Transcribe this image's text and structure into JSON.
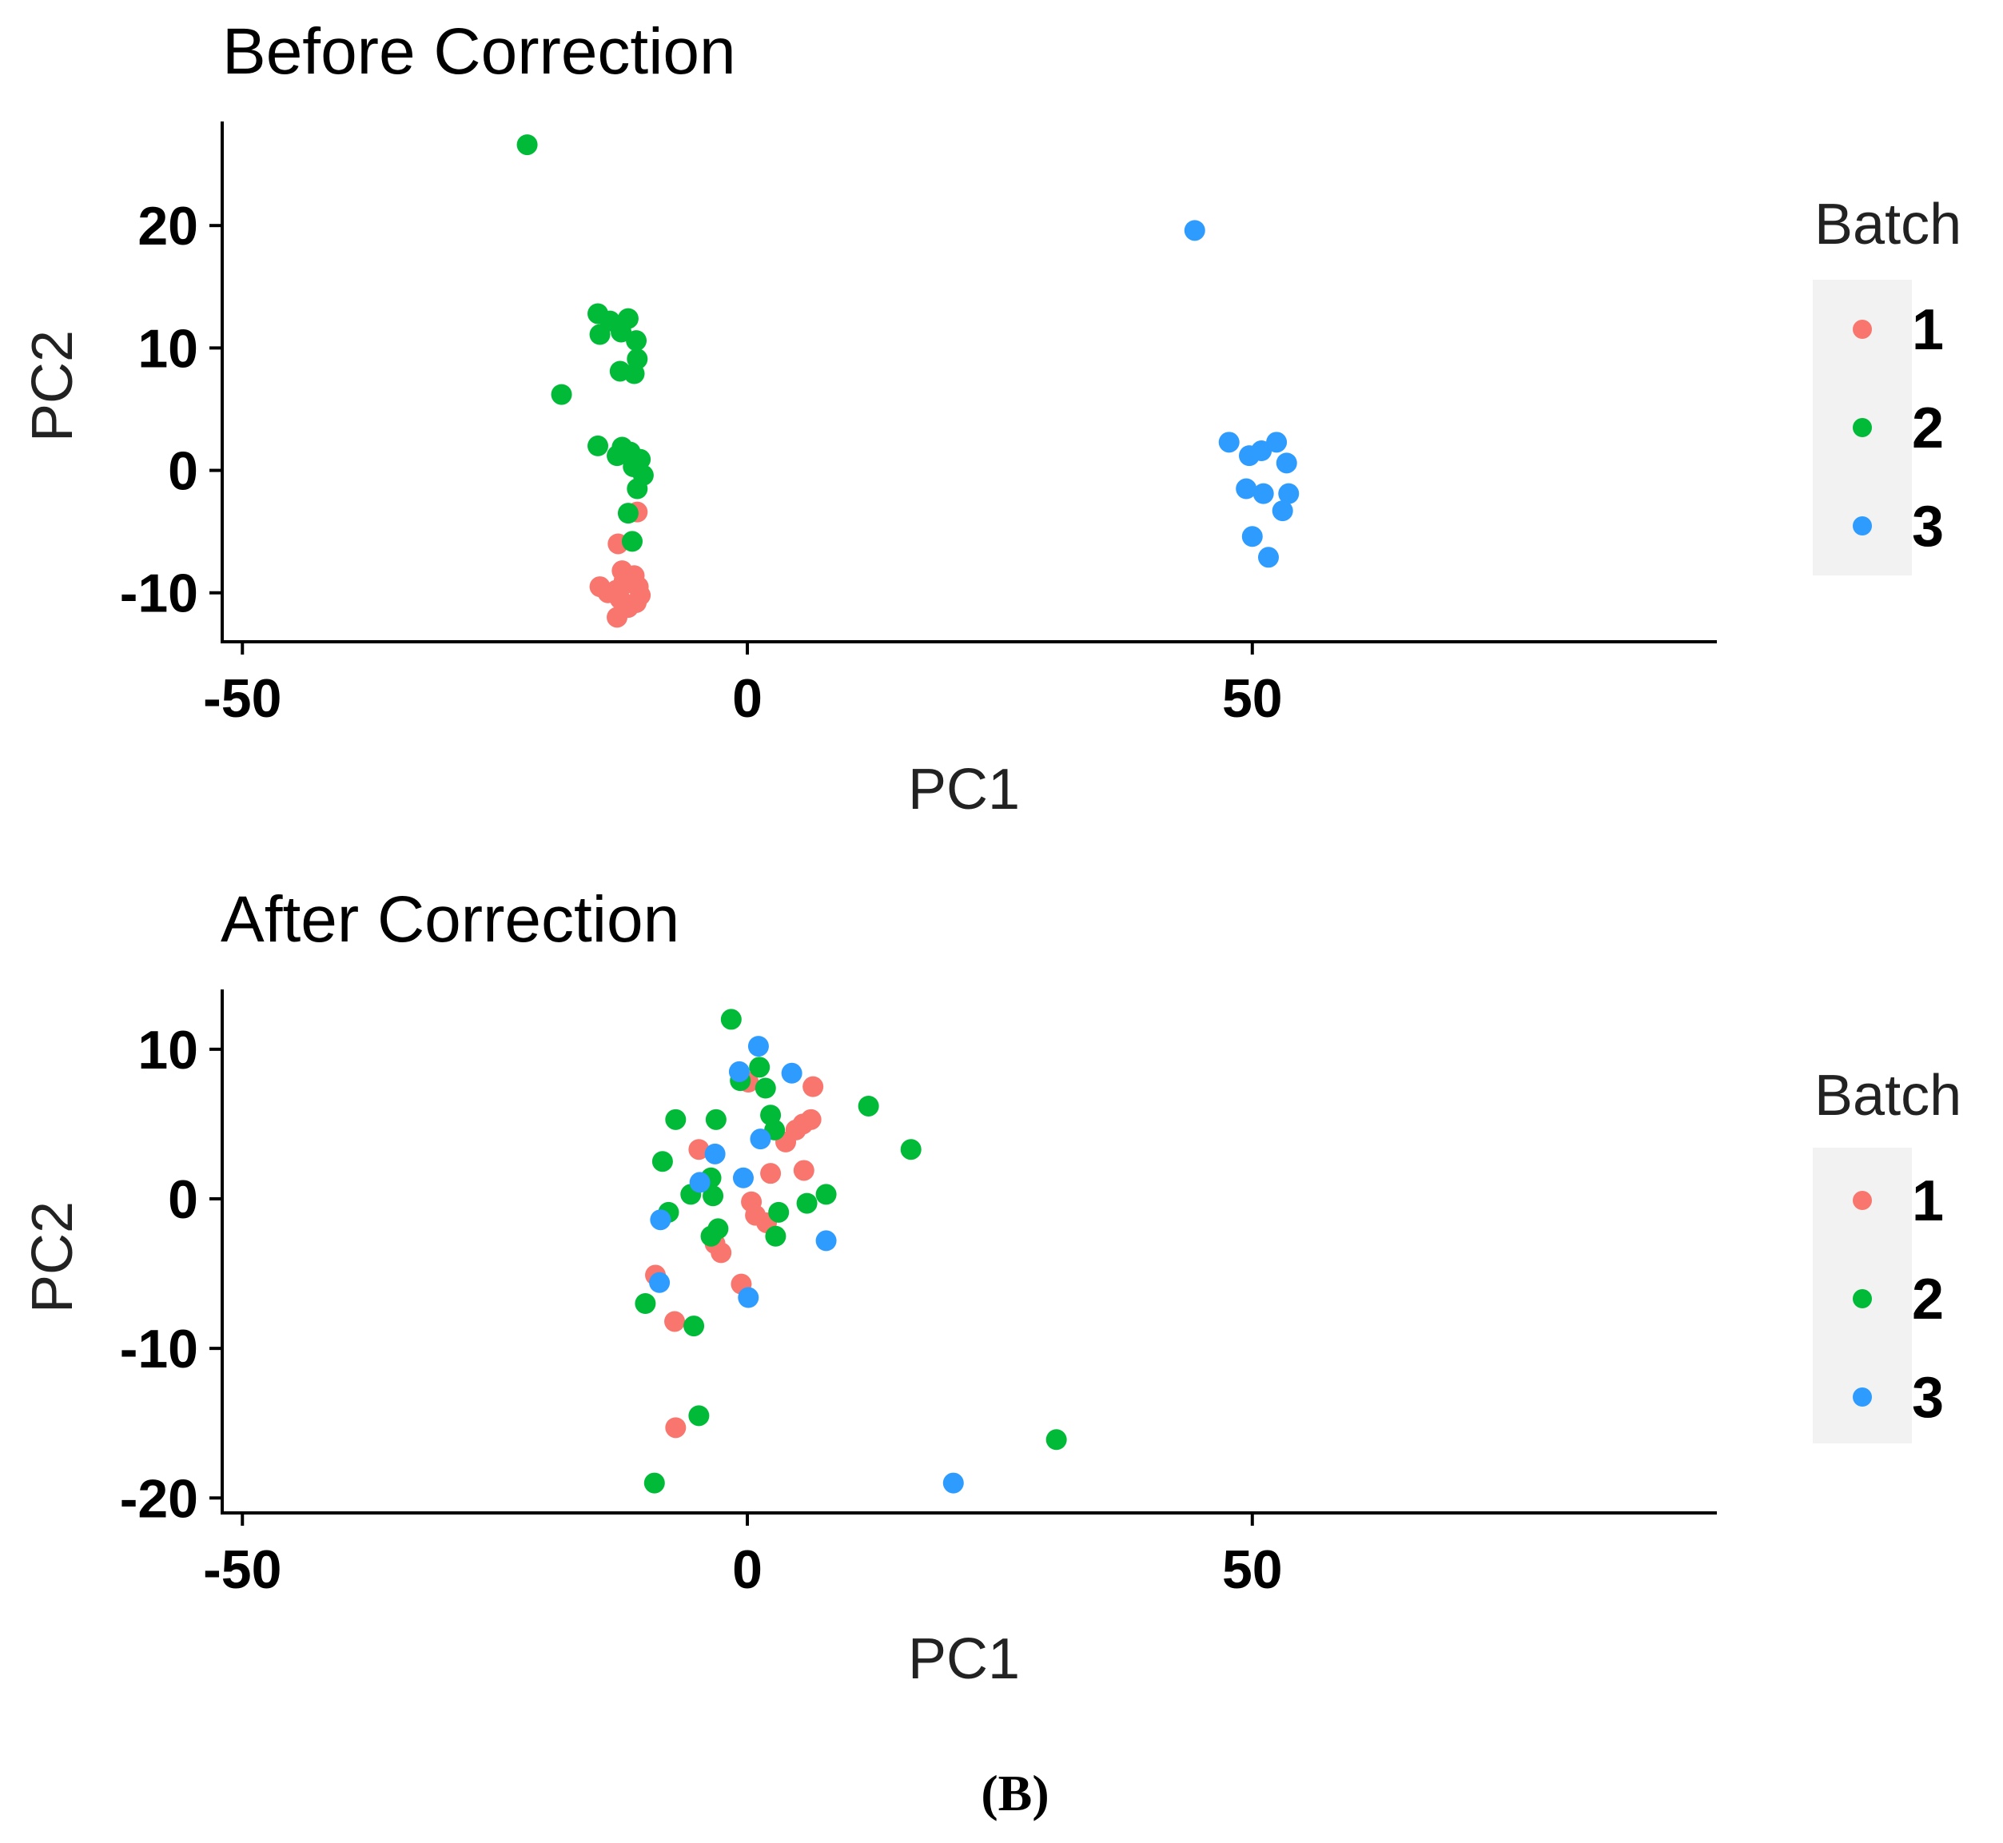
{
  "caption": "(B)",
  "colors": {
    "1": "#F8766D",
    "2": "#00BA38",
    "3": "#2E9BFF"
  },
  "chart_data": [
    {
      "type": "scatter",
      "title": "Before Correction",
      "xlabel": "PC1",
      "ylabel": "PC2",
      "xlim": [
        -52,
        96
      ],
      "ylim": [
        -14,
        28.5
      ],
      "xticks": [
        -50,
        0,
        50
      ],
      "yticks": [
        -10,
        0,
        10,
        20
      ],
      "grid": false,
      "legend": {
        "title": "Batch",
        "position": "right",
        "entries": [
          "1",
          "2",
          "3"
        ]
      },
      "series": [
        {
          "name": "1",
          "points": [
            [
              -13.0,
              -9.8
            ],
            [
              -12.6,
              -10.5
            ],
            [
              -11.8,
              -11.2
            ],
            [
              -12.2,
              -9.0
            ],
            [
              -13.8,
              -10.0
            ],
            [
              -11.2,
              -8.6
            ],
            [
              -10.8,
              -9.5
            ],
            [
              -11.0,
              -10.8
            ],
            [
              -12.4,
              -8.2
            ],
            [
              -12.8,
              -6.0
            ],
            [
              -10.9,
              -3.4
            ],
            [
              -12.9,
              -12.0
            ],
            [
              -11.6,
              -9.2
            ],
            [
              -14.6,
              -9.5
            ],
            [
              -10.6,
              -10.2
            ]
          ]
        },
        {
          "name": "2",
          "points": [
            [
              -21.8,
              26.6
            ],
            [
              -14.8,
              12.8
            ],
            [
              -13.6,
              12.2
            ],
            [
              -11.8,
              12.4
            ],
            [
              -14.6,
              11.1
            ],
            [
              -12.5,
              11.3
            ],
            [
              -11.0,
              10.6
            ],
            [
              -10.9,
              9.1
            ],
            [
              -12.6,
              8.1
            ],
            [
              -11.2,
              7.9
            ],
            [
              -18.4,
              6.2
            ],
            [
              -14.8,
              2.0
            ],
            [
              -12.4,
              1.9
            ],
            [
              -11.6,
              1.5
            ],
            [
              -10.6,
              0.9
            ],
            [
              -11.3,
              0.3
            ],
            [
              -10.3,
              -0.4
            ],
            [
              -10.9,
              -1.5
            ],
            [
              -11.8,
              -3.5
            ],
            [
              -11.4,
              -5.8
            ],
            [
              -12.9,
              1.2
            ]
          ]
        },
        {
          "name": "3",
          "points": [
            [
              44.3,
              19.6
            ],
            [
              47.7,
              2.3
            ],
            [
              49.7,
              1.2
            ],
            [
              50.9,
              1.6
            ],
            [
              52.4,
              2.3
            ],
            [
              53.4,
              0.6
            ],
            [
              49.4,
              -1.5
            ],
            [
              51.1,
              -1.9
            ],
            [
              53.6,
              -1.9
            ],
            [
              53.0,
              -3.3
            ],
            [
              50.0,
              -5.4
            ],
            [
              51.6,
              -7.1
            ]
          ]
        }
      ]
    },
    {
      "type": "scatter",
      "title": "After Correction",
      "xlabel": "PC1",
      "ylabel": "PC2",
      "xlim": [
        -52,
        96
      ],
      "ylim": [
        -21,
        14
      ],
      "xticks": [
        -50,
        0,
        50
      ],
      "yticks": [
        -20,
        -10,
        0,
        10
      ],
      "grid": false,
      "legend": {
        "title": "Batch",
        "position": "right",
        "entries": [
          "1",
          "2",
          "3"
        ]
      },
      "series": [
        {
          "name": "1",
          "points": [
            [
              6.5,
              7.5
            ],
            [
              5.5,
              5.0
            ],
            [
              4.8,
              4.6
            ],
            [
              3.8,
              3.8
            ],
            [
              6.3,
              5.3
            ],
            [
              -4.8,
              3.3
            ],
            [
              2.3,
              1.7
            ],
            [
              5.6,
              1.9
            ],
            [
              0.4,
              -0.2
            ],
            [
              0.8,
              -1.1
            ],
            [
              1.9,
              -1.6
            ],
            [
              -3.2,
              -3.0
            ],
            [
              -2.6,
              -3.6
            ],
            [
              -9.1,
              -5.1
            ],
            [
              -0.6,
              -5.7
            ],
            [
              -7.2,
              -8.2
            ],
            [
              -7.1,
              -15.3
            ],
            [
              0.1,
              7.8
            ]
          ]
        },
        {
          "name": "2",
          "points": [
            [
              -1.6,
              12.0
            ],
            [
              1.2,
              8.8
            ],
            [
              -0.7,
              7.9
            ],
            [
              1.8,
              7.4
            ],
            [
              12.0,
              6.2
            ],
            [
              2.3,
              5.6
            ],
            [
              -7.1,
              5.3
            ],
            [
              -3.1,
              5.3
            ],
            [
              2.7,
              4.6
            ],
            [
              16.2,
              3.3
            ],
            [
              -8.4,
              2.5
            ],
            [
              -3.6,
              1.4
            ],
            [
              -5.6,
              0.3
            ],
            [
              -3.4,
              0.2
            ],
            [
              7.8,
              0.3
            ],
            [
              5.9,
              -0.3
            ],
            [
              -7.8,
              -0.9
            ],
            [
              3.1,
              -0.9
            ],
            [
              -2.9,
              -2.0
            ],
            [
              -3.6,
              -2.5
            ],
            [
              2.8,
              -2.5
            ],
            [
              -10.1,
              -7.0
            ],
            [
              -5.3,
              -8.5
            ],
            [
              -4.8,
              -14.5
            ],
            [
              -9.2,
              -19.0
            ],
            [
              30.6,
              -16.1
            ]
          ]
        },
        {
          "name": "3",
          "points": [
            [
              1.1,
              10.2
            ],
            [
              -0.8,
              8.5
            ],
            [
              4.4,
              8.4
            ],
            [
              1.3,
              4.0
            ],
            [
              -3.2,
              3.0
            ],
            [
              -0.4,
              1.4
            ],
            [
              -4.7,
              1.1
            ],
            [
              -8.6,
              -1.4
            ],
            [
              7.8,
              -2.8
            ],
            [
              -8.7,
              -5.6
            ],
            [
              0.1,
              -6.6
            ],
            [
              20.4,
              -19.0
            ]
          ]
        }
      ]
    }
  ]
}
